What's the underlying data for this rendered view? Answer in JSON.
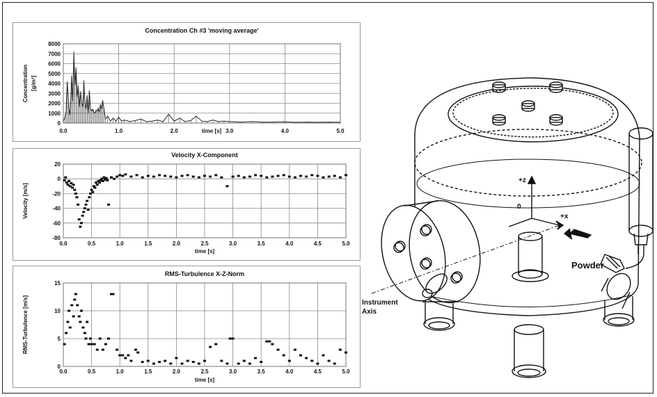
{
  "chart_data": [
    {
      "type": "line",
      "title": "Concentration Ch #3 'moving average'",
      "xlabel": "time  [s]",
      "ylabel": "Concentration",
      "ylabel_unit": "[g/m³]",
      "xlim": [
        0,
        5.0
      ],
      "ylim": [
        0,
        8000
      ],
      "xticks": [
        "0.0",
        "1.0",
        "2.0",
        "3.0",
        "4.0",
        "5.0"
      ],
      "yticks": [
        "0",
        "1000",
        "2000",
        "3000",
        "4000",
        "5000",
        "6000",
        "7000",
        "8000"
      ],
      "grid": true,
      "x": [
        0.0,
        0.03,
        0.05,
        0.07,
        0.09,
        0.11,
        0.13,
        0.15,
        0.17,
        0.19,
        0.21,
        0.23,
        0.25,
        0.27,
        0.29,
        0.31,
        0.33,
        0.35,
        0.37,
        0.39,
        0.41,
        0.43,
        0.45,
        0.47,
        0.49,
        0.51,
        0.53,
        0.55,
        0.57,
        0.59,
        0.61,
        0.63,
        0.65,
        0.67,
        0.69,
        0.71,
        0.73,
        0.76,
        0.8,
        0.85,
        0.9,
        0.95,
        1.0,
        1.05,
        1.1,
        1.2,
        1.3,
        1.4,
        1.5,
        1.6,
        1.7,
        1.8,
        1.9,
        2.0,
        2.1,
        2.2,
        2.3,
        2.4,
        2.5,
        2.6,
        2.7,
        2.8,
        2.9,
        3.0,
        3.2,
        3.4,
        3.6,
        3.8,
        4.0,
        4.2,
        4.4,
        4.6,
        4.8,
        5.0
      ],
      "values": [
        200,
        600,
        1200,
        4200,
        2500,
        800,
        1500,
        4800,
        2200,
        7200,
        3800,
        5600,
        2600,
        3800,
        1600,
        3200,
        2100,
        1600,
        4300,
        2200,
        1400,
        2800,
        1000,
        3300,
        1500,
        1200,
        1400,
        1100,
        1000,
        1300,
        1200,
        1500,
        1100,
        1900,
        1400,
        2300,
        1600,
        400,
        700,
        200,
        500,
        200,
        600,
        200,
        300,
        150,
        250,
        400,
        150,
        200,
        300,
        150,
        900,
        200,
        500,
        150,
        250,
        700,
        200,
        150,
        300,
        150,
        200,
        150,
        100,
        150,
        100,
        100,
        120,
        80,
        100,
        80,
        100,
        80
      ]
    },
    {
      "type": "scatter",
      "title": "Velocity X-Component",
      "xlabel": "time  [s]",
      "ylabel": "Velocity  [m/s]",
      "xlim": [
        0,
        5.0
      ],
      "ylim": [
        -80,
        20
      ],
      "xticks": [
        "0.0",
        "0.5",
        "1.0",
        "1.5",
        "2.0",
        "2.5",
        "3.0",
        "3.5",
        "4.0",
        "4.5",
        "5.0"
      ],
      "yticks": [
        "20",
        "0",
        "-20",
        "-40",
        "-60",
        "-80"
      ],
      "grid": true,
      "x": [
        0.02,
        0.04,
        0.06,
        0.08,
        0.1,
        0.12,
        0.14,
        0.16,
        0.18,
        0.2,
        0.22,
        0.24,
        0.26,
        0.28,
        0.3,
        0.32,
        0.34,
        0.36,
        0.38,
        0.4,
        0.42,
        0.44,
        0.46,
        0.48,
        0.5,
        0.52,
        0.54,
        0.56,
        0.58,
        0.6,
        0.62,
        0.64,
        0.66,
        0.68,
        0.7,
        0.72,
        0.74,
        0.76,
        0.78,
        0.8,
        0.85,
        0.9,
        0.95,
        1.0,
        1.05,
        1.1,
        1.2,
        1.3,
        1.4,
        1.5,
        1.6,
        1.7,
        1.8,
        1.9,
        2.0,
        2.1,
        2.2,
        2.3,
        2.4,
        2.5,
        2.6,
        2.7,
        2.8,
        2.9,
        3.0,
        3.1,
        3.2,
        3.3,
        3.4,
        3.5,
        3.6,
        3.7,
        3.8,
        3.9,
        4.0,
        4.1,
        4.2,
        4.3,
        4.4,
        4.5,
        4.6,
        4.7,
        4.8,
        4.9,
        5.0
      ],
      "values": [
        -2,
        2,
        -5,
        -8,
        -3,
        -10,
        -6,
        -12,
        -8,
        -15,
        -20,
        -25,
        -35,
        -55,
        -65,
        -60,
        -50,
        -45,
        -40,
        -35,
        -30,
        -42,
        -25,
        -20,
        -15,
        -18,
        -10,
        -12,
        -5,
        -8,
        -3,
        -5,
        -2,
        0,
        -3,
        2,
        -1,
        1,
        -2,
        -35,
        2,
        0,
        3,
        5,
        4,
        6,
        3,
        5,
        2,
        4,
        3,
        5,
        4,
        3,
        2,
        4,
        5,
        3,
        2,
        4,
        3,
        5,
        2,
        -10,
        3,
        4,
        2,
        3,
        5,
        4,
        2,
        3,
        4,
        5,
        3,
        2,
        4,
        3,
        5,
        4,
        2,
        3,
        4,
        2,
        5
      ]
    },
    {
      "type": "scatter",
      "title": "RMS-Turbulence X-Z-Norm",
      "xlabel": "time  [s]",
      "ylabel": "RMS-Turbulence  [m/s]",
      "xlim": [
        0,
        5.0
      ],
      "ylim": [
        0,
        15
      ],
      "xticks": [
        "0.0",
        "0.5",
        "1.0",
        "1.5",
        "2.0",
        "2.5",
        "3.0",
        "3.5",
        "4.0",
        "4.5",
        "5.0"
      ],
      "yticks": [
        "15",
        "10",
        "5",
        "0"
      ],
      "grid": true,
      "x": [
        0.02,
        0.05,
        0.08,
        0.1,
        0.12,
        0.15,
        0.18,
        0.2,
        0.22,
        0.25,
        0.28,
        0.3,
        0.32,
        0.35,
        0.38,
        0.4,
        0.42,
        0.45,
        0.48,
        0.5,
        0.55,
        0.6,
        0.65,
        0.7,
        0.75,
        0.8,
        0.85,
        0.88,
        0.95,
        1.0,
        1.05,
        1.1,
        1.15,
        1.2,
        1.28,
        1.32,
        1.4,
        1.5,
        1.6,
        1.7,
        1.8,
        1.9,
        2.0,
        2.1,
        2.2,
        2.3,
        2.4,
        2.5,
        2.6,
        2.7,
        2.8,
        2.9,
        2.95,
        3.0,
        3.1,
        3.2,
        3.3,
        3.4,
        3.5,
        3.6,
        3.65,
        3.7,
        3.8,
        3.9,
        4.0,
        4.1,
        4.2,
        4.3,
        4.4,
        4.5,
        4.6,
        4.7,
        4.8,
        4.9,
        5.0
      ],
      "values": [
        4,
        6,
        8,
        10,
        7,
        11,
        9,
        12,
        13,
        11,
        9,
        8,
        10,
        7,
        6,
        5,
        8,
        4,
        5,
        4,
        4,
        3,
        5,
        3,
        4,
        5,
        13,
        13,
        3,
        2,
        2,
        1.5,
        2,
        1,
        3,
        2.5,
        0.8,
        1,
        0.5,
        0.8,
        1,
        0.5,
        1.5,
        0.5,
        1,
        0.8,
        0.5,
        1,
        3.5,
        4,
        1,
        0.5,
        5,
        5,
        0.5,
        1,
        0.5,
        1.5,
        0.8,
        4.5,
        4.5,
        4,
        3,
        2,
        1,
        3,
        2,
        1.5,
        1,
        0.5,
        2,
        1,
        0.5,
        3,
        2.5
      ]
    }
  ],
  "figure": {
    "labels": {
      "axis_z": "+z",
      "axis_x": "+x",
      "origin": "0",
      "powder": "Powder",
      "instrument_axis_line1": "Instrument",
      "instrument_axis_line2": "Axis"
    }
  }
}
